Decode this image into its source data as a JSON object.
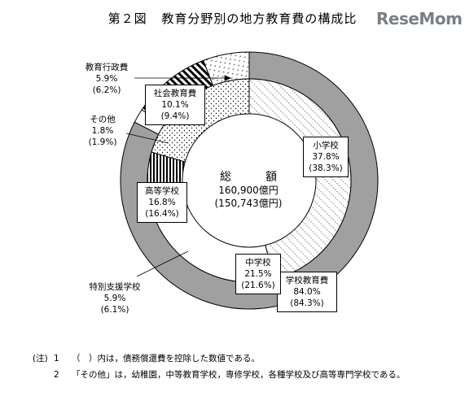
{
  "header": {
    "figure_no": "第２図",
    "title": "教育分野別の地方教育費の構成比",
    "logo_text": "ReseMom"
  },
  "chart_data": {
    "type": "pie",
    "style": "double-ring donut",
    "total": {
      "label": "総　額",
      "value": "160,900億円",
      "value_alt": "(150,743億円)"
    },
    "outer_ring": [
      {
        "name": "学校教育費",
        "value": 84.0,
        "value_alt": 84.3,
        "value_text": "84.0%",
        "alt_text": "(84.3%)",
        "fill": "#a0a0a0"
      },
      {
        "name": "その他",
        "value": 1.8,
        "value_alt": 1.9,
        "value_text": "1.8%",
        "alt_text": "(1.9%)",
        "fill": "#ffffff"
      },
      {
        "name": "社会教育費",
        "value": 10.1,
        "value_alt": 9.4,
        "value_text": "10.1%",
        "alt_text": "(9.4%)",
        "fill": "stripe"
      },
      {
        "name": "教育行政費",
        "value": 5.9,
        "value_alt": 6.2,
        "value_text": "5.9%",
        "alt_text": "(6.2%)",
        "fill": "sparse-dots"
      }
    ],
    "inner_ring": [
      {
        "name": "小学校",
        "value": 37.8,
        "value_alt": 38.3,
        "value_text": "37.8%",
        "alt_text": "(38.3%)",
        "fill": "hatch"
      },
      {
        "name": "中学校",
        "value": 21.5,
        "value_alt": 21.6,
        "value_text": "21.5%",
        "alt_text": "(21.6%)",
        "fill": "#ffffff"
      },
      {
        "name": "特別支援学校",
        "value": 5.9,
        "value_alt": 6.1,
        "value_text": "5.9%",
        "alt_text": "(6.1%)",
        "fill": "vertical-lines"
      },
      {
        "name": "高等学校",
        "value": 16.8,
        "value_alt": 16.4,
        "value_text": "16.8%",
        "alt_text": "(16.4%)",
        "fill": "dots"
      }
    ]
  },
  "notes": [
    {
      "mark": "(注)",
      "num": "1",
      "text": "（　）内は，債務償還費を控除した数値である。"
    },
    {
      "mark": "",
      "num": "2",
      "text": "「その他」は，幼稚園，中等教育学校，専修学校，各種学校及び高等専門学校である。"
    }
  ],
  "colors": {
    "gray": "#a0a0a0",
    "stroke": "#000000",
    "logo": "#7a7f86"
  }
}
